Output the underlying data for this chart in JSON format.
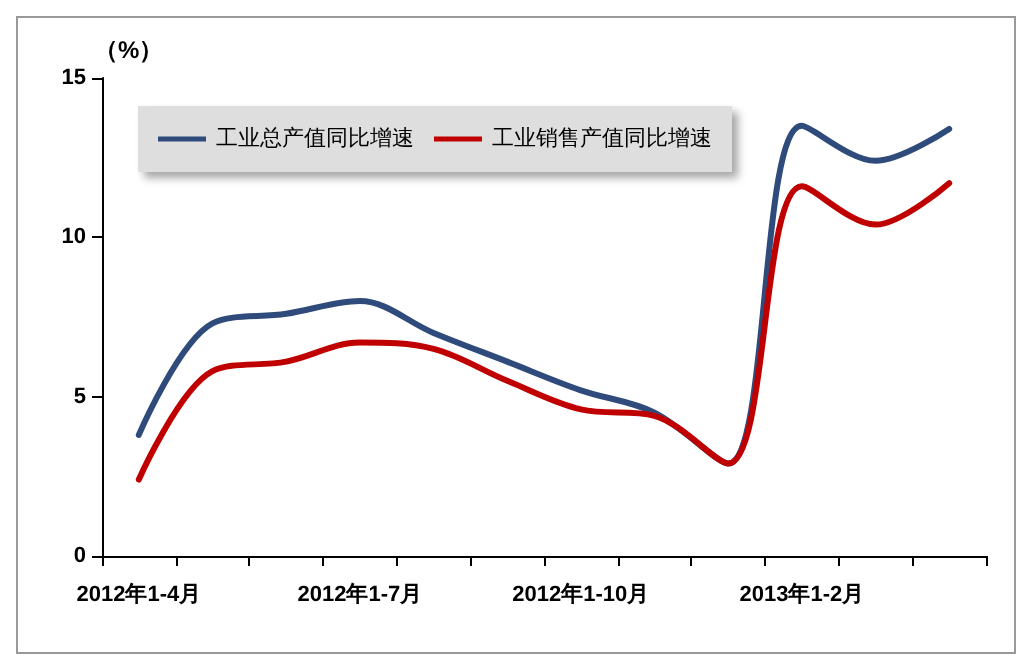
{
  "chart_data": {
    "type": "line",
    "ylabel": "（%）",
    "categories": [
      "2012年1-4月",
      null,
      null,
      "2012年1-7月",
      null,
      null,
      "2012年1-10月",
      null,
      null,
      "2013年1-2月",
      null,
      null
    ],
    "series": [
      {
        "name": "工业总产值同比增速",
        "color": "#2f4b7c",
        "values": [
          3.8,
          7.3,
          7.6,
          8.0,
          7.0,
          6.1,
          5.2,
          4.5,
          2.9,
          13.5,
          12.4,
          13.4
        ]
      },
      {
        "name": "工业销售产值同比增速",
        "color": "#c00000",
        "values": [
          2.4,
          5.8,
          6.1,
          6.7,
          6.5,
          5.5,
          4.6,
          4.4,
          2.9,
          11.6,
          10.4,
          11.7
        ]
      }
    ],
    "ylim": [
      0,
      15
    ],
    "yticks": [
      0,
      5,
      10,
      15
    ],
    "grid": false,
    "legend": "top left",
    "marker": "none",
    "line_style": "solid"
  }
}
